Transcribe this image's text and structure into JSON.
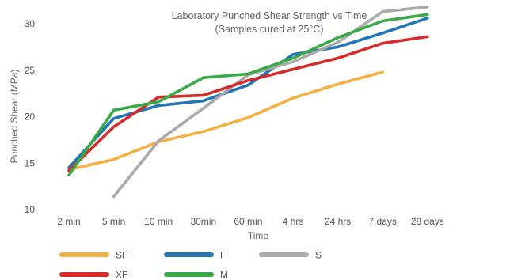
{
  "chart_data": {
    "type": "line",
    "title": "Laboratory Punched Shear Strength vs Time",
    "subtitle": "(Samples cured at 25°C)",
    "xlabel": "Time",
    "ylabel": "Punched Shear (MPa)",
    "ylim": [
      10,
      30
    ],
    "yticks": [
      10,
      15,
      20,
      25,
      30
    ],
    "grid": false,
    "legend_position": "bottom",
    "categories": [
      "2 min",
      "5 min",
      "10 min",
      "30min",
      "60 min",
      "4 hrs",
      "24 hrs",
      "7 days",
      "28 days"
    ],
    "series": [
      {
        "name": "SF",
        "color": "#F5B041",
        "values": [
          14.3,
          15.4,
          17.3,
          18.4,
          19.9,
          22.0,
          23.5,
          24.8,
          null
        ]
      },
      {
        "name": "F",
        "color": "#2474B8",
        "values": [
          14.5,
          19.8,
          21.2,
          21.7,
          23.4,
          26.7,
          27.5,
          29.0,
          30.6
        ]
      },
      {
        "name": "S",
        "color": "#AAAAAA",
        "values": [
          null,
          11.4,
          17.4,
          20.9,
          24.5,
          25.9,
          28.0,
          31.3,
          31.8
        ]
      },
      {
        "name": "XF",
        "color": "#D72B2B",
        "values": [
          14.2,
          18.9,
          22.1,
          22.3,
          23.9,
          25.1,
          26.3,
          27.9,
          28.6
        ]
      },
      {
        "name": "M",
        "color": "#3AAA48",
        "values": [
          13.7,
          20.7,
          21.6,
          24.2,
          24.6,
          26.3,
          28.5,
          30.3,
          31.0
        ]
      }
    ]
  }
}
